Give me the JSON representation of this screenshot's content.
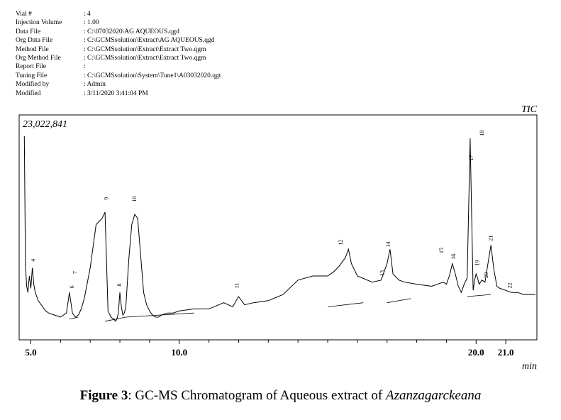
{
  "header": {
    "rows": [
      {
        "label": "Vial #",
        "value": ": 4"
      },
      {
        "label": "Injection Volume",
        "value": ": 1.00"
      },
      {
        "label": "Data File",
        "value": ": C:\\07032020\\AG AQUEOUS.qgd"
      },
      {
        "label": "Org Data File",
        "value": ": C:\\GCMSsolution\\Extract\\AG AQUEOUS.qgd"
      },
      {
        "label": "Method File",
        "value": ": C:\\GCMSsolution\\Extract\\Extract Two.qgm"
      },
      {
        "label": "Org Method File",
        "value": ": C:\\GCMSsolution\\Extract\\Extract Two.qgm"
      },
      {
        "label": "Report File",
        "value": ":"
      },
      {
        "label": "Tuning File",
        "value": ": C:\\GCMSsolution\\System\\Tune1\\A03032020.qgt"
      },
      {
        "label": "Modified by",
        "value": ": Admin"
      },
      {
        "label": "Modified",
        "value": ": 3/11/2020 3:41:04 PM"
      }
    ]
  },
  "caption": {
    "prefix": "Figure 3",
    "text": ": GC-MS Chromatogram of Aqueous extract of ",
    "species": "Azanzagarckeana"
  },
  "chart_data": {
    "type": "line",
    "title": "TIC",
    "max_intensity_label": "23,022,841",
    "xlabel": "min",
    "xlim": [
      4.75,
      22.0
    ],
    "ylim": [
      0,
      23022841
    ],
    "xticks_labeled": [
      {
        "value": 5.0,
        "label": "5.0"
      },
      {
        "value": 10.0,
        "label": "10.0"
      },
      {
        "value": 20.0,
        "label": "20.0"
      },
      {
        "value": 21.0,
        "label": "21.0"
      }
    ],
    "xticks_minor": [
      6,
      7,
      8,
      9,
      11,
      12,
      13,
      14,
      15,
      16,
      17,
      18,
      19
    ],
    "grid": false,
    "series": [
      {
        "values_note": "relative abundance (0-1) versus retention time",
        "x": [
          4.78,
          4.82,
          4.86,
          4.9,
          4.95,
          5.0,
          5.05,
          5.1,
          5.15,
          5.2,
          5.25,
          5.3,
          5.4,
          5.5,
          5.6,
          5.8,
          6.0,
          6.2,
          6.3,
          6.4,
          6.5,
          6.6,
          6.7,
          6.8,
          7.0,
          7.2,
          7.4,
          7.5,
          7.6,
          7.7,
          7.8,
          7.85,
          7.9,
          7.95,
          8.0,
          8.05,
          8.1,
          8.15,
          8.2,
          8.3,
          8.4,
          8.5,
          8.6,
          8.7,
          8.8,
          8.9,
          9.0,
          9.1,
          9.2,
          9.3,
          9.4,
          9.6,
          9.8,
          10.0,
          10.5,
          11.0,
          11.5,
          11.8,
          12.0,
          12.2,
          12.5,
          13.0,
          13.5,
          14.0,
          14.5,
          15.0,
          15.2,
          15.4,
          15.5,
          15.6,
          15.7,
          15.8,
          16.0,
          16.5,
          16.8,
          17.0,
          17.1,
          17.2,
          17.4,
          17.6,
          18.0,
          18.5,
          18.9,
          19.0,
          19.1,
          19.2,
          19.3,
          19.4,
          19.5,
          19.6,
          19.7,
          19.8,
          19.85,
          19.9,
          19.95,
          20.0,
          20.05,
          20.1,
          20.2,
          20.3,
          20.4,
          20.5,
          20.6,
          20.7,
          20.8,
          21.0,
          21.2,
          21.4,
          21.6,
          21.8,
          22.0
        ],
        "y": [
          0.98,
          0.35,
          0.25,
          0.22,
          0.3,
          0.24,
          0.34,
          0.26,
          0.22,
          0.2,
          0.18,
          0.17,
          0.15,
          0.13,
          0.12,
          0.11,
          0.1,
          0.12,
          0.22,
          0.12,
          0.1,
          0.11,
          0.14,
          0.19,
          0.34,
          0.55,
          0.58,
          0.61,
          0.13,
          0.1,
          0.09,
          0.08,
          0.09,
          0.12,
          0.22,
          0.15,
          0.11,
          0.12,
          0.15,
          0.38,
          0.55,
          0.6,
          0.58,
          0.4,
          0.22,
          0.16,
          0.13,
          0.11,
          0.1,
          0.1,
          0.11,
          0.12,
          0.12,
          0.13,
          0.14,
          0.14,
          0.17,
          0.15,
          0.2,
          0.16,
          0.17,
          0.18,
          0.21,
          0.28,
          0.3,
          0.3,
          0.32,
          0.35,
          0.37,
          0.39,
          0.43,
          0.36,
          0.3,
          0.27,
          0.28,
          0.36,
          0.43,
          0.31,
          0.28,
          0.27,
          0.26,
          0.25,
          0.27,
          0.26,
          0.3,
          0.36,
          0.31,
          0.25,
          0.22,
          0.26,
          0.29,
          0.97,
          0.6,
          0.23,
          0.28,
          0.31,
          0.29,
          0.26,
          0.28,
          0.27,
          0.36,
          0.45,
          0.33,
          0.25,
          0.24,
          0.23,
          0.22,
          0.22,
          0.21,
          0.21,
          0.21
        ]
      }
    ],
    "peak_labels": [
      {
        "label": "4",
        "x": 5.15,
        "y": 0.37
      },
      {
        "label": "6",
        "x": 6.45,
        "y": 0.24
      },
      {
        "label": "7",
        "x": 6.55,
        "y": 0.31
      },
      {
        "label": "9",
        "x": 7.6,
        "y": 0.67
      },
      {
        "label": "10",
        "x": 8.55,
        "y": 0.66
      },
      {
        "label": "8",
        "x": 8.05,
        "y": 0.25
      },
      {
        "label": "11",
        "x": 12.0,
        "y": 0.24
      },
      {
        "label": "12",
        "x": 15.5,
        "y": 0.45
      },
      {
        "label": "13",
        "x": 16.9,
        "y": 0.3
      },
      {
        "label": "14",
        "x": 17.1,
        "y": 0.44
      },
      {
        "label": "15",
        "x": 18.9,
        "y": 0.41
      },
      {
        "label": "16",
        "x": 19.3,
        "y": 0.38
      },
      {
        "label": "17",
        "x": 19.9,
        "y": 0.86
      },
      {
        "label": "18",
        "x": 20.25,
        "y": 0.98
      },
      {
        "label": "19",
        "x": 20.1,
        "y": 0.35
      },
      {
        "label": "20",
        "x": 20.4,
        "y": 0.29
      },
      {
        "label": "21",
        "x": 20.55,
        "y": 0.47
      },
      {
        "label": "22",
        "x": 21.2,
        "y": 0.24
      }
    ]
  }
}
